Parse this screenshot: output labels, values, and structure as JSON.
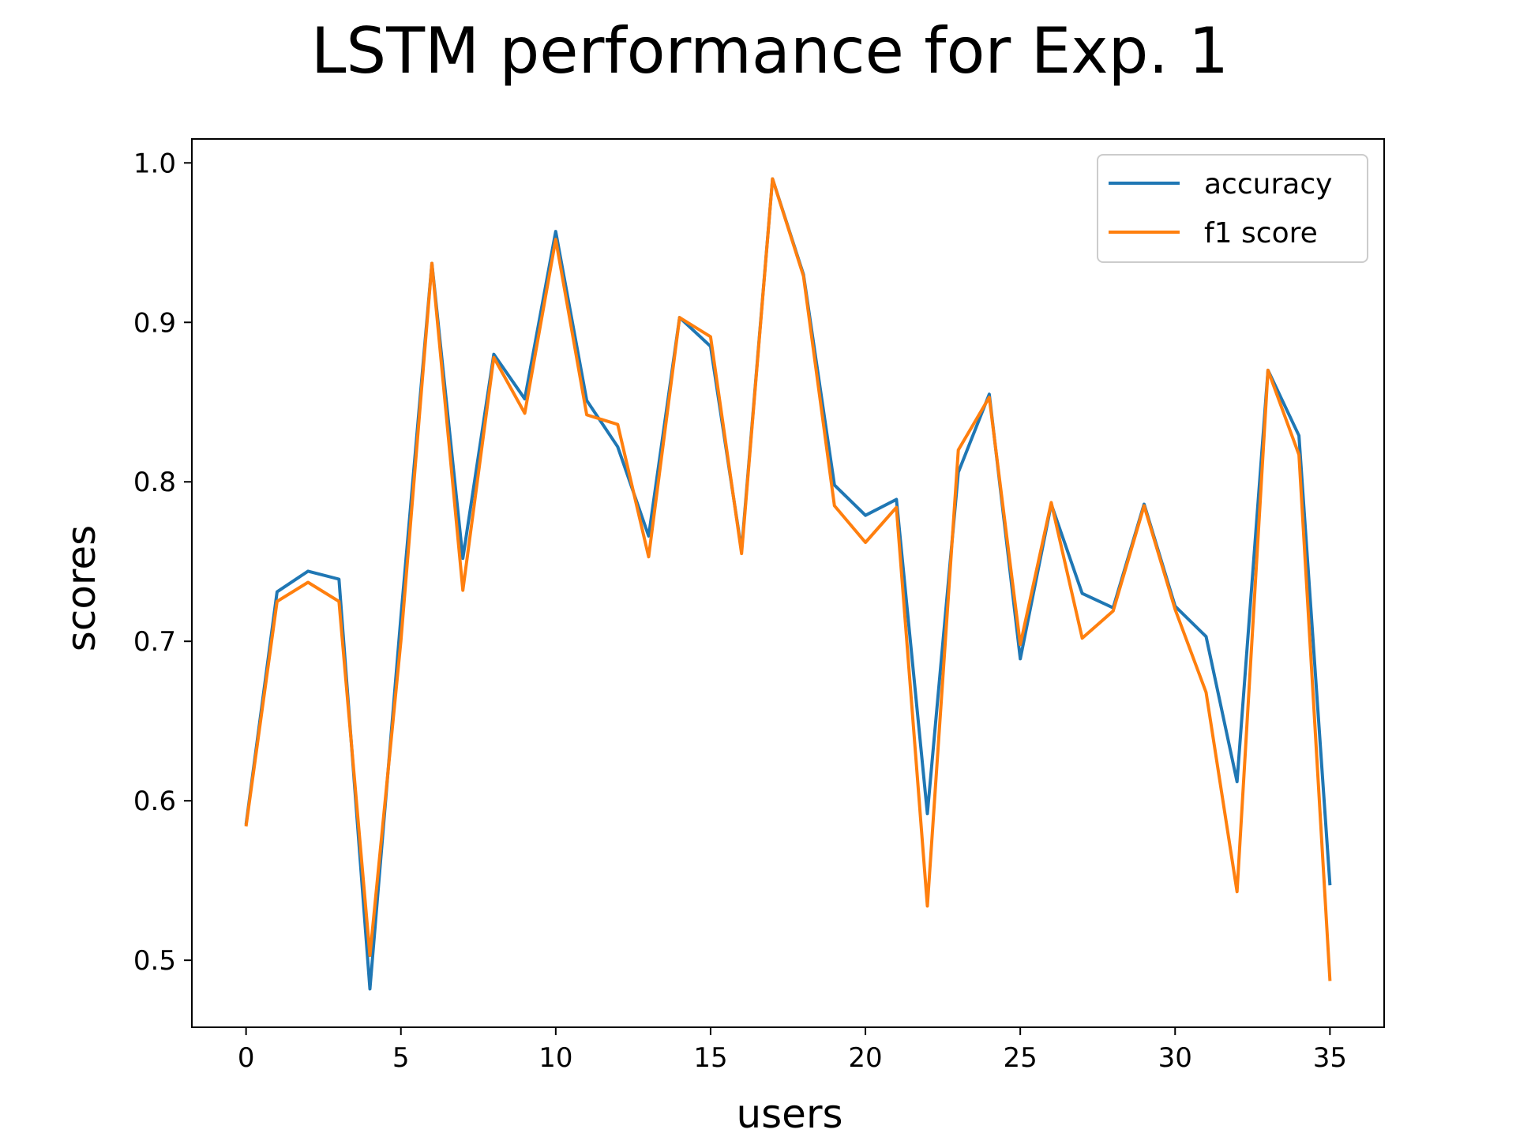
{
  "chart_data": {
    "type": "line",
    "title": "LSTM performance for Exp. 1",
    "xlabel": "users",
    "ylabel": "scores",
    "xlim": [
      -1.75,
      36.75
    ],
    "ylim": [
      0.458,
      1.015
    ],
    "xticks": [
      0,
      5,
      10,
      15,
      20,
      25,
      30,
      35
    ],
    "yticks": [
      0.5,
      0.6,
      0.7,
      0.8,
      0.9,
      1.0
    ],
    "xtick_labels": [
      "0",
      "5",
      "10",
      "15",
      "20",
      "25",
      "30",
      "35"
    ],
    "ytick_labels": [
      "0.5",
      "0.6",
      "0.7",
      "0.8",
      "0.9",
      "1.0"
    ],
    "grid": false,
    "legend_position": "top-right",
    "x": [
      0,
      1,
      2,
      3,
      4,
      5,
      6,
      7,
      8,
      9,
      10,
      11,
      12,
      13,
      14,
      15,
      16,
      17,
      18,
      19,
      20,
      21,
      22,
      23,
      24,
      25,
      26,
      27,
      28,
      29,
      30,
      31,
      32,
      33,
      34,
      35
    ],
    "series": [
      {
        "name": "accuracy",
        "color": "#1f77b4",
        "values": [
          0.585,
          0.731,
          0.744,
          0.739,
          0.482,
          0.715,
          0.937,
          0.752,
          0.88,
          0.852,
          0.957,
          0.851,
          0.822,
          0.766,
          0.903,
          0.885,
          0.757,
          0.99,
          0.93,
          0.798,
          0.779,
          0.789,
          0.592,
          0.806,
          0.855,
          0.689,
          0.786,
          0.73,
          0.721,
          0.786,
          0.722,
          0.703,
          0.612,
          0.87,
          0.829,
          0.547
        ]
      },
      {
        "name": "f1 score",
        "color": "#ff7f0e",
        "values": [
          0.584,
          0.725,
          0.737,
          0.725,
          0.503,
          0.7,
          0.937,
          0.732,
          0.878,
          0.843,
          0.952,
          0.842,
          0.836,
          0.753,
          0.903,
          0.891,
          0.755,
          0.99,
          0.929,
          0.785,
          0.762,
          0.784,
          0.534,
          0.82,
          0.853,
          0.698,
          0.787,
          0.702,
          0.719,
          0.785,
          0.72,
          0.668,
          0.543,
          0.87,
          0.817,
          0.487
        ]
      }
    ]
  }
}
